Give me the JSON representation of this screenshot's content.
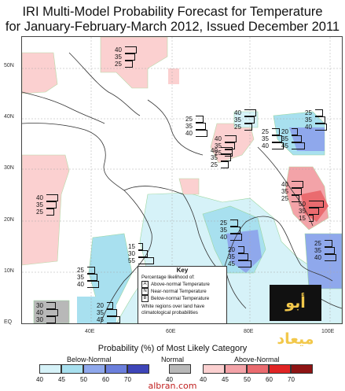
{
  "title": {
    "line1": "IRI Multi-Model Probability Forecast for Temperature",
    "line2": "for January-February-March 2012, Issued December 2011"
  },
  "axes": {
    "lat_labels": [
      "50N",
      "40N",
      "30N",
      "20N",
      "10N",
      "EQ"
    ],
    "lon_labels": [
      "40E",
      "60E",
      "80E",
      "100E"
    ]
  },
  "forecast_boxes": [
    {
      "id": "north-russia",
      "values": [
        "40",
        "35",
        "25"
      ]
    },
    {
      "id": "central-asia-ne",
      "values": [
        "40",
        "35",
        "25"
      ]
    },
    {
      "id": "kazakh-south",
      "values": [
        "25",
        "35",
        "40"
      ]
    },
    {
      "id": "turkmen",
      "values": [
        "25",
        "35",
        "40"
      ]
    },
    {
      "id": "north-india",
      "values": [
        "40",
        "35",
        "25"
      ]
    },
    {
      "id": "pakistan",
      "values": [
        "40",
        "35",
        "25"
      ]
    },
    {
      "id": "china-west",
      "values": [
        "20",
        "35",
        "45"
      ]
    },
    {
      "id": "china-east",
      "values": [
        "25",
        "35",
        "40"
      ]
    },
    {
      "id": "west-africa-north",
      "values": [
        "40",
        "35",
        "25"
      ]
    },
    {
      "id": "indochina-north",
      "values": [
        "40",
        "35",
        "25"
      ]
    },
    {
      "id": "indochina-south",
      "values": [
        "50",
        "35",
        "15"
      ]
    },
    {
      "id": "india-center",
      "values": [
        "25",
        "35",
        "40"
      ]
    },
    {
      "id": "arabian-sea",
      "values": [
        "15",
        "30",
        "55"
      ]
    },
    {
      "id": "south-india",
      "values": [
        "20",
        "35",
        "45"
      ]
    },
    {
      "id": "east-africa",
      "values": [
        "25",
        "35",
        "40"
      ]
    },
    {
      "id": "indonesia",
      "values": [
        "25",
        "35",
        "40"
      ]
    },
    {
      "id": "africa-eq",
      "values": [
        "30",
        "40",
        "30"
      ]
    },
    {
      "id": "somalia",
      "values": [
        "20",
        "35",
        "45"
      ]
    }
  ],
  "key": {
    "title": "Key",
    "subtitle": "Percentage likelihood of:",
    "items": [
      {
        "letter": "A",
        "label": "Above-normal Temperature"
      },
      {
        "letter": "N",
        "label": "Near-normal Temperature"
      },
      {
        "letter": "B",
        "label": "Below-normal Temperature"
      }
    ],
    "note": "White regions over land have climatological probabilities"
  },
  "logo_text": "أبو ميعاد",
  "legend": {
    "title": "Probability (%) of Most Likely Category",
    "below": {
      "label": "Below-Normal",
      "ticks": [
        "40",
        "45",
        "50",
        "60",
        "70"
      ],
      "colors": [
        "#d6f2f8",
        "#a8e0ef",
        "#8fa8ec",
        "#6b7fdc",
        "#3e45b8"
      ]
    },
    "normal": {
      "label": "Normal",
      "ticks": [
        "40"
      ],
      "colors": [
        "#b8b8b8"
      ]
    },
    "above": {
      "label": "Above-Normal",
      "ticks": [
        "40",
        "45",
        "50",
        "60",
        "70"
      ],
      "colors": [
        "#fbd0d0",
        "#f3a3a8",
        "#ea6b6f",
        "#e02424",
        "#8e1414"
      ]
    }
  },
  "watermark": "albran.com"
}
